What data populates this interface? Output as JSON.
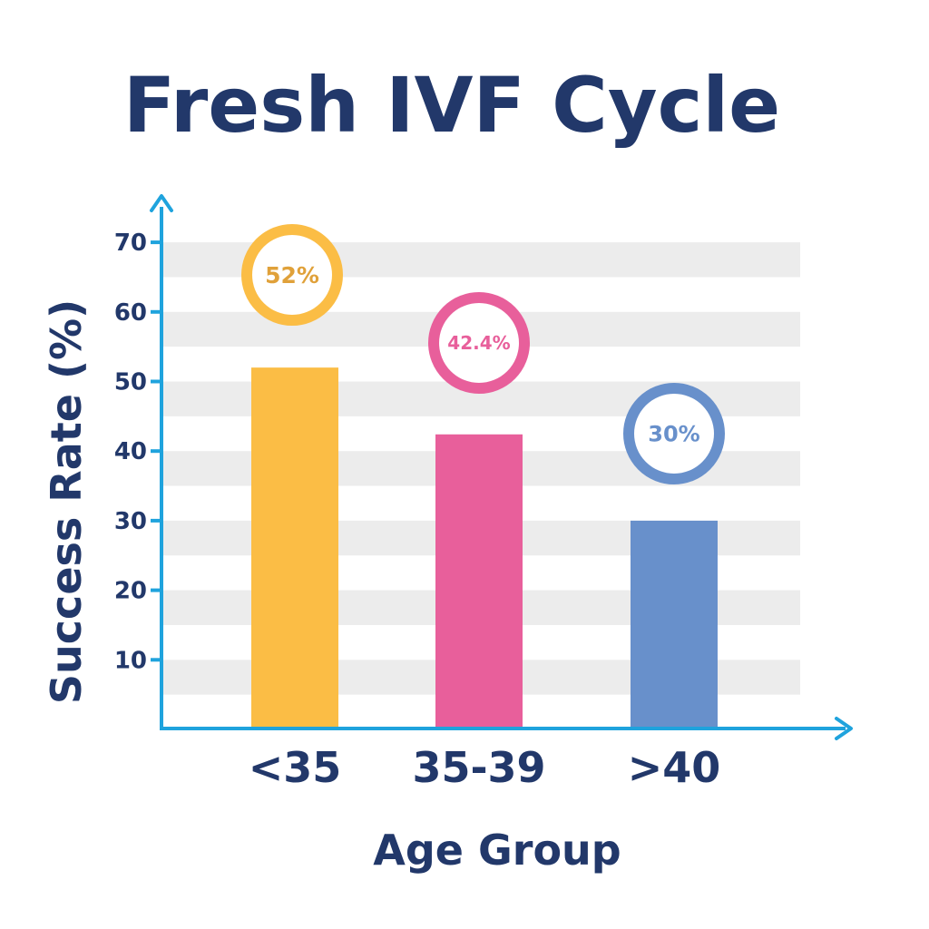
{
  "chart_data": {
    "type": "bar",
    "title": "Fresh IVF Cycle",
    "xlabel": "Age Group",
    "ylabel": "Success Rate (%)",
    "categories": [
      "<35",
      "35-39",
      ">40"
    ],
    "values": [
      52,
      42.4,
      30
    ],
    "data_labels": [
      "52%",
      "42.4%",
      "30%"
    ],
    "bar_colors": [
      "#fbbd45",
      "#e85f9b",
      "#6890cb"
    ],
    "label_text_colors": [
      "#e0a13a",
      "#e85f9b",
      "#6890cb"
    ],
    "ylim": [
      0,
      70
    ],
    "y_ticks": [
      10,
      20,
      30,
      40,
      50,
      60,
      70
    ],
    "y_tick_labels": [
      "10",
      "20",
      "30",
      "40",
      "50",
      "60",
      "70"
    ],
    "grid": "alternating horizontal bands",
    "axis_color": "#1fa3dd",
    "text_color": "#22386a",
    "band_color": "#ececec"
  }
}
